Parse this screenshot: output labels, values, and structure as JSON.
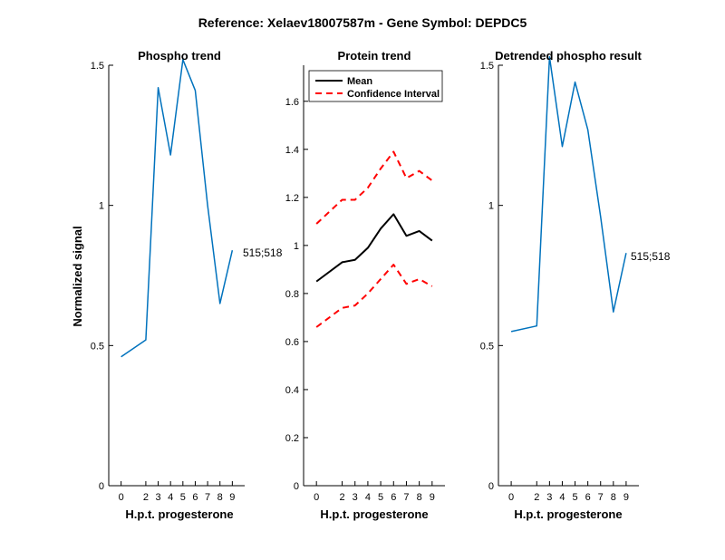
{
  "figure": {
    "title": "Reference:  Xelaev18007587m - Gene Symbol:  DEPDC5"
  },
  "chart_data": [
    {
      "type": "line",
      "title": "Phospho trend",
      "xlabel": "H.p.t. progesterone",
      "ylabel": "Normalized signal",
      "x": [
        0,
        2,
        3,
        4,
        5,
        6,
        7,
        8,
        9
      ],
      "x_ticks": [
        "0",
        "2",
        "3",
        "4",
        "5",
        "6",
        "7",
        "8",
        "9"
      ],
      "ylim": [
        0,
        1.5
      ],
      "y_ticks": [
        "0",
        "0.5",
        "1",
        "1.5"
      ],
      "series": [
        {
          "values": [
            0.46,
            0.52,
            1.42,
            1.18,
            1.52,
            1.41,
            1.0,
            0.65,
            0.84
          ],
          "color": "#0072BD"
        }
      ],
      "annotation": "515;518",
      "grid": false
    },
    {
      "type": "line",
      "title": "Protein trend",
      "xlabel": "H.p.t. progesterone",
      "x": [
        0,
        2,
        3,
        4,
        5,
        6,
        7,
        8,
        9
      ],
      "x_ticks": [
        "0",
        "2",
        "3",
        "4",
        "5",
        "6",
        "7",
        "8",
        "9"
      ],
      "ylim": [
        0,
        1.75
      ],
      "y_ticks": [
        "0",
        "0.2",
        "0.4",
        "0.6",
        "0.8",
        "1",
        "1.2",
        "1.4",
        "1.6"
      ],
      "series": [
        {
          "name": "Mean",
          "values": [
            0.85,
            0.93,
            0.94,
            0.99,
            1.07,
            1.13,
            1.04,
            1.06,
            1.02
          ],
          "color": "#000000",
          "style": "solid"
        },
        {
          "name": "Confidence Interval",
          "values": [
            1.09,
            1.19,
            1.19,
            1.24,
            1.32,
            1.39,
            1.28,
            1.31,
            1.27
          ],
          "color": "#FF0000",
          "style": "dashed"
        },
        {
          "name": "",
          "values": [
            0.66,
            0.74,
            0.75,
            0.8,
            0.86,
            0.92,
            0.84,
            0.86,
            0.83
          ],
          "color": "#FF0000",
          "style": "dashed"
        }
      ],
      "legend": {
        "position": "top-left",
        "entries": [
          "Mean",
          "Confidence Interval"
        ]
      },
      "grid": false
    },
    {
      "type": "line",
      "title": "Detrended phospho result",
      "xlabel": "H.p.t. progesterone",
      "x": [
        0,
        2,
        3,
        4,
        5,
        6,
        7,
        8,
        9
      ],
      "x_ticks": [
        "0",
        "2",
        "3",
        "4",
        "5",
        "6",
        "7",
        "8",
        "9"
      ],
      "ylim": [
        0,
        1.5
      ],
      "y_ticks": [
        "0",
        "0.5",
        "1",
        "1.5"
      ],
      "series": [
        {
          "values": [
            0.55,
            0.57,
            1.53,
            1.21,
            1.44,
            1.27,
            0.96,
            0.62,
            0.83
          ],
          "color": "#0072BD"
        }
      ],
      "annotation": "515;518",
      "grid": false
    }
  ]
}
